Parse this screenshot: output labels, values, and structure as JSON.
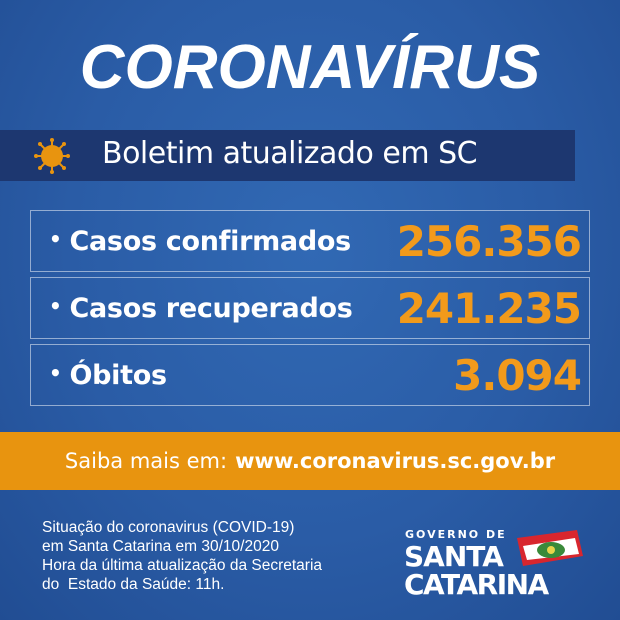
{
  "title": "CORONAVÍRUS",
  "banner": {
    "icon": "virus-icon",
    "text": "Boletim atualizado em SC"
  },
  "stats": [
    {
      "label": "Casos confirmados",
      "value": "256.356"
    },
    {
      "label": "Casos recuperados",
      "value": "241.235"
    },
    {
      "label": "Óbitos",
      "value": "3.094"
    }
  ],
  "bullet": "•",
  "more": {
    "prefix": "Saiba mais em:",
    "url": "www.coronavirus.sc.gov.br"
  },
  "footer": [
    "Situação do coronavirus (COVID-19)",
    "em Santa Catarina em 30/10/2020",
    "Hora da última atualização da Secretaria",
    "do  Estado da Saúde: 11h."
  ],
  "logo": {
    "line1": "GOVERNO DE",
    "line2": "SANTA",
    "line3": "CATARINA"
  },
  "colors": {
    "background": "#2a5ca6",
    "banner": "#1d3770",
    "accent": "#e8940f",
    "numbers": "#f29a1b"
  }
}
